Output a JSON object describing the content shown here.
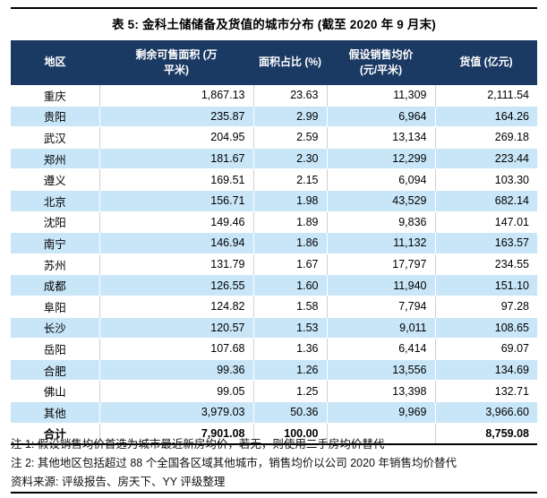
{
  "title": "表 5: 金科土储储备及货值的城市分布 (截至 2020 年 9 月末)",
  "colors": {
    "header_bg": "#1B3A63",
    "header_text": "#FFFFFF",
    "row_alt_bg": "#C8E6F8",
    "body_text": "#000000"
  },
  "table": {
    "columns": [
      {
        "key": "region",
        "lines": [
          "地区"
        ]
      },
      {
        "key": "area",
        "lines": [
          "剩余可售面积 (万",
          "平米)"
        ]
      },
      {
        "key": "share",
        "lines": [
          "面积占比 (%)"
        ]
      },
      {
        "key": "price",
        "lines": [
          "假设销售均价",
          "(元/平米)"
        ]
      },
      {
        "key": "value",
        "lines": [
          "货值 (亿元)"
        ]
      }
    ],
    "rows": [
      [
        "重庆",
        "1,867.13",
        "23.63",
        "11,309",
        "2,111.54"
      ],
      [
        "贵阳",
        "235.87",
        "2.99",
        "6,964",
        "164.26"
      ],
      [
        "武汉",
        "204.95",
        "2.59",
        "13,134",
        "269.18"
      ],
      [
        "郑州",
        "181.67",
        "2.30",
        "12,299",
        "223.44"
      ],
      [
        "遵义",
        "169.51",
        "2.15",
        "6,094",
        "103.30"
      ],
      [
        "北京",
        "156.71",
        "1.98",
        "43,529",
        "682.14"
      ],
      [
        "沈阳",
        "149.46",
        "1.89",
        "9,836",
        "147.01"
      ],
      [
        "南宁",
        "146.94",
        "1.86",
        "11,132",
        "163.57"
      ],
      [
        "苏州",
        "131.79",
        "1.67",
        "17,797",
        "234.55"
      ],
      [
        "成都",
        "126.55",
        "1.60",
        "11,940",
        "151.10"
      ],
      [
        "阜阳",
        "124.82",
        "1.58",
        "7,794",
        "97.28"
      ],
      [
        "长沙",
        "120.57",
        "1.53",
        "9,011",
        "108.65"
      ],
      [
        "岳阳",
        "107.68",
        "1.36",
        "6,414",
        "69.07"
      ],
      [
        "合肥",
        "99.36",
        "1.26",
        "13,556",
        "134.69"
      ],
      [
        "佛山",
        "99.05",
        "1.25",
        "13,398",
        "132.71"
      ],
      [
        "其他",
        "3,979.03",
        "50.36",
        "9,969",
        "3,966.60"
      ]
    ],
    "total_row": [
      "合计",
      "7,901.08",
      "100.00",
      "",
      "8,759.08"
    ]
  },
  "notes": [
    "注 1: 假设销售均价首选为城市最近新房均价，若无，则使用二手房均价替代",
    "注 2: 其他地区包括超过 88 个全国各区域其他城市，销售均价以公司 2020 年销售均价替代"
  ],
  "source": "资料来源: 评级报告、房天下、YY 评级整理"
}
